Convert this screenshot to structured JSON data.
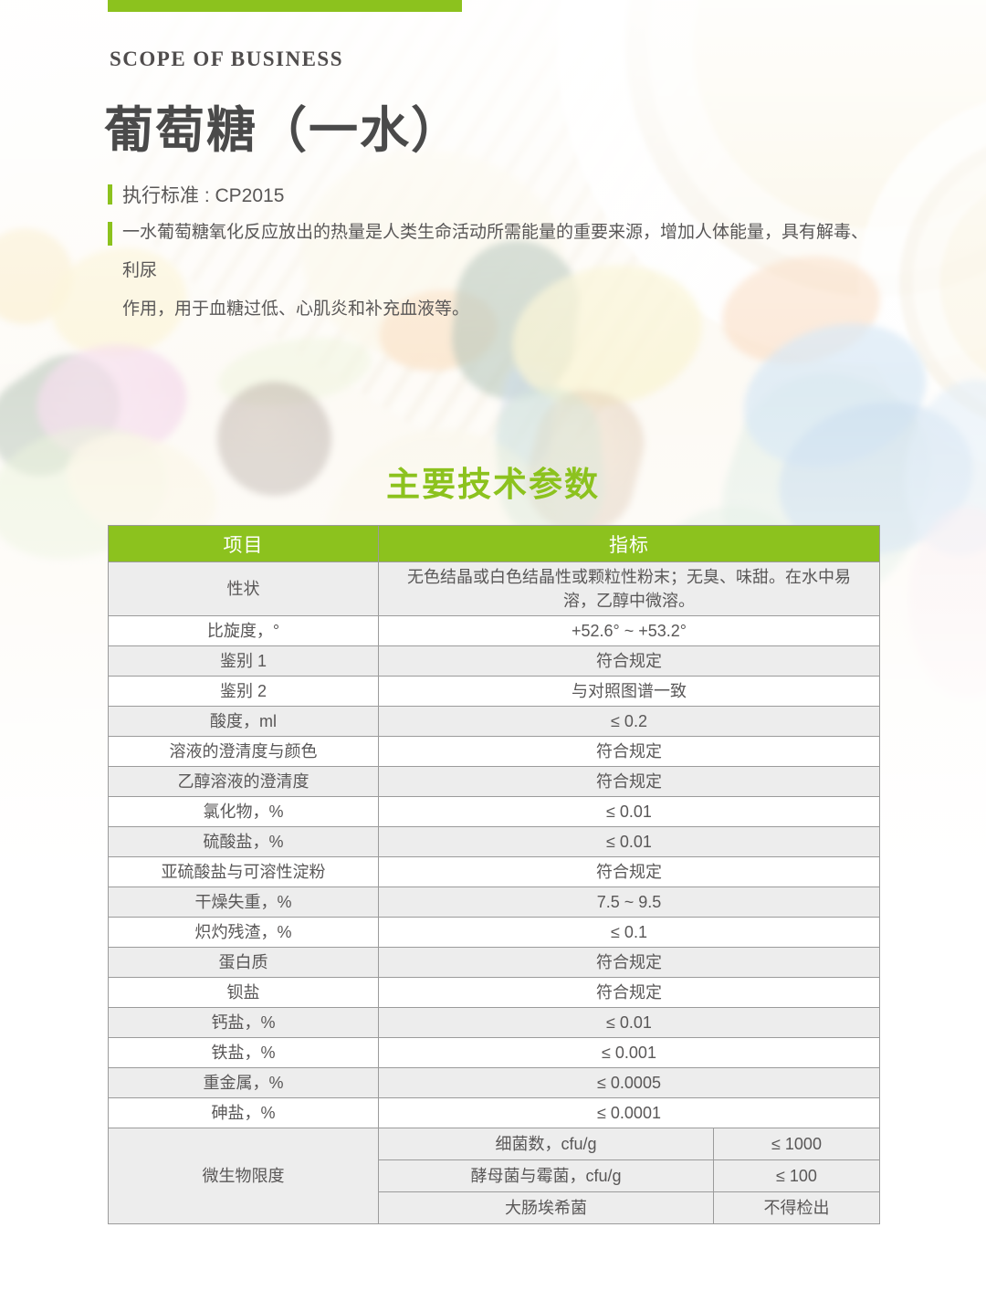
{
  "colors": {
    "accent_green": "#8cc21e",
    "title_gray": "#4a4a4a",
    "body_gray": "#595757",
    "row_stripe": "#ededed",
    "table_border": "#9b9b9b"
  },
  "page": {
    "eyebrow": "SCOPE OF BUSINESS",
    "title": "葡萄糖（一水）",
    "standard": "执行标准 : CP2015",
    "description_lines": [
      "一水葡萄糖氧化反应放出的热量是人类生命活动所需能量的重要来源，增加人体能量，具有解毒、利尿",
      "作用，用于血糖过低、心肌炎和补充血液等。"
    ],
    "section_title": "主要技术参数"
  },
  "table": {
    "headers": [
      "项目",
      "指标"
    ],
    "rows": [
      {
        "item": "性状",
        "value": "无色结晶或白色结晶性或颗粒性粉末；无臭、味甜。在水中易溶，乙醇中微溶。"
      },
      {
        "item": "比旋度，°",
        "value": "+52.6°  ~  +53.2°"
      },
      {
        "item": "鉴别 1",
        "value": "符合规定"
      },
      {
        "item": "鉴别 2",
        "value": "与对照图谱一致"
      },
      {
        "item": "酸度，ml",
        "value": "≤ 0.2"
      },
      {
        "item": "溶液的澄清度与颜色",
        "value": "符合规定"
      },
      {
        "item": "乙醇溶液的澄清度",
        "value": "符合规定"
      },
      {
        "item": "氯化物，%",
        "value": "≤ 0.01"
      },
      {
        "item": "硫酸盐，%",
        "value": "≤ 0.01"
      },
      {
        "item": "亚硫酸盐与可溶性淀粉",
        "value": "符合规定"
      },
      {
        "item": "干燥失重，%",
        "value": "7.5 ~ 9.5"
      },
      {
        "item": "炽灼残渣，%",
        "value": "≤ 0.1"
      },
      {
        "item": "蛋白质",
        "value": "符合规定"
      },
      {
        "item": "钡盐",
        "value": "符合规定"
      },
      {
        "item": "钙盐，%",
        "value": "≤ 0.01"
      },
      {
        "item": "铁盐，%",
        "value": "≤ 0.001"
      },
      {
        "item": "重金属，%",
        "value": "≤ 0.0005"
      },
      {
        "item": "砷盐，%",
        "value": "≤ 0.0001"
      }
    ],
    "microbial": {
      "item": "微生物限度",
      "sub_rows": [
        {
          "name": "细菌数，cfu/g",
          "limit": "≤ 1000"
        },
        {
          "name": "酵母菌与霉菌，cfu/g",
          "limit": "≤ 100"
        },
        {
          "name": "大肠埃希菌",
          "limit": "不得检出"
        }
      ]
    }
  }
}
